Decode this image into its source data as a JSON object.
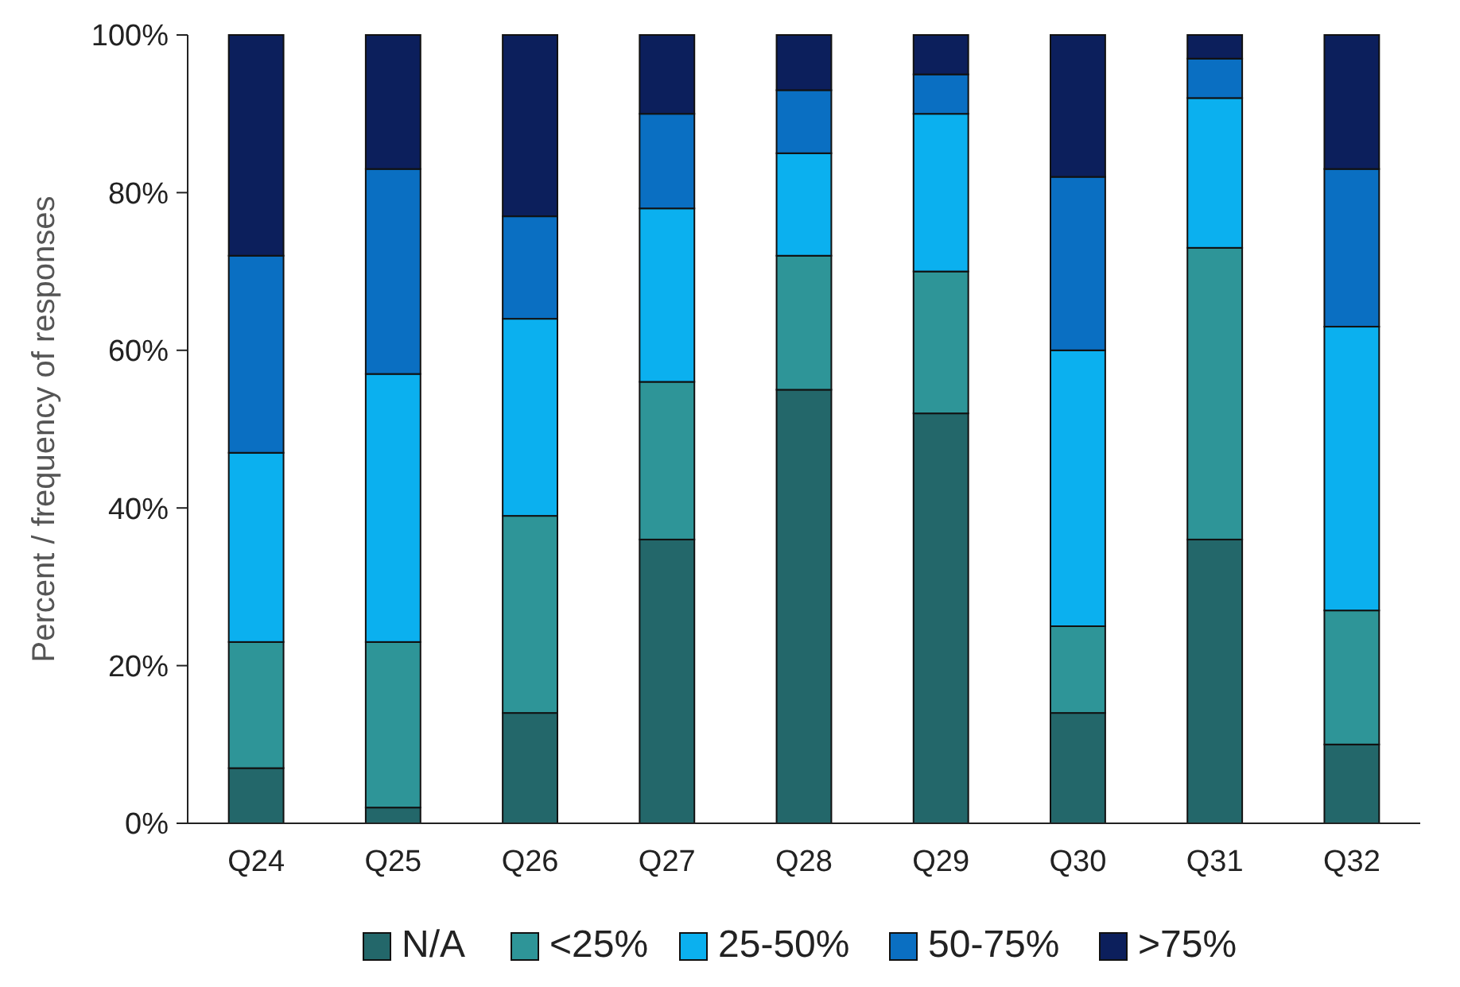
{
  "chart_data": {
    "type": "bar",
    "stacked": true,
    "ylabel": "Percent / frequency of responses",
    "categories": [
      "Q24",
      "Q25",
      "Q26",
      "Q27",
      "Q28",
      "Q29",
      "Q30",
      "Q31",
      "Q32"
    ],
    "ylim": [
      0,
      100
    ],
    "yticks": [
      {
        "value": 0,
        "label": "0%"
      },
      {
        "value": 20,
        "label": "20%"
      },
      {
        "value": 40,
        "label": "40%"
      },
      {
        "value": 60,
        "label": "60%"
      },
      {
        "value": 80,
        "label": "80%"
      },
      {
        "value": 100,
        "label": "100%"
      }
    ],
    "legend": "bottom",
    "series": [
      {
        "name": "N/A",
        "color": "#23676a",
        "values": [
          7,
          2,
          14,
          36,
          55,
          52,
          14,
          36,
          10
        ]
      },
      {
        "name": "<25%",
        "color": "#2e9598",
        "values": [
          16,
          21,
          25,
          20,
          17,
          18,
          11,
          37,
          17
        ]
      },
      {
        "name": "25-50%",
        "color": "#0bb0ef",
        "values": [
          24,
          34,
          25,
          22,
          13,
          20,
          35,
          19,
          36
        ]
      },
      {
        "name": "50-75%",
        "color": "#0a6fc2",
        "values": [
          25,
          26,
          13,
          12,
          8,
          5,
          22,
          5,
          20
        ]
      },
      {
        "name": ">75%",
        "color": "#0c1f5c",
        "values": [
          28,
          17,
          23,
          10,
          7,
          5,
          18,
          3,
          17
        ]
      }
    ]
  }
}
